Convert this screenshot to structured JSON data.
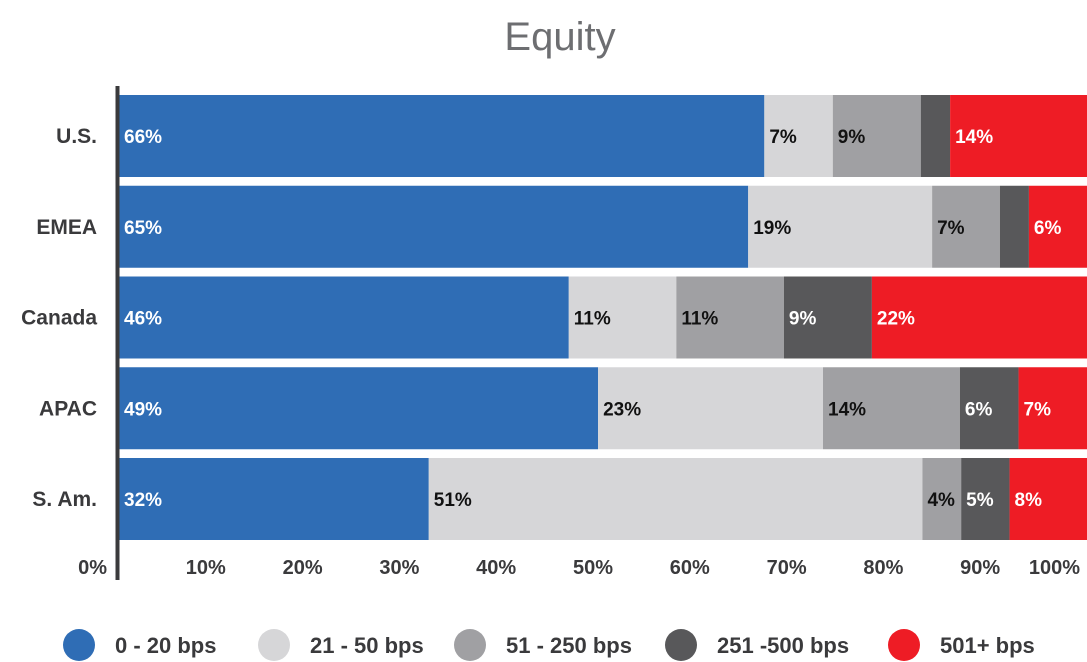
{
  "chart_data": {
    "type": "bar",
    "orientation": "horizontal",
    "stacked": true,
    "title": "Equity",
    "categories": [
      "U.S.",
      "EMEA",
      "Canada",
      "APAC",
      "S. Am."
    ],
    "series": [
      {
        "name": "0 - 20 bps",
        "color": "#2f6db5",
        "values": [
          66,
          65,
          46,
          49,
          32
        ],
        "labels": [
          "66%",
          "65%",
          "46%",
          "49%",
          "32%"
        ]
      },
      {
        "name": "21 - 50 bps",
        "color": "#d6d6d8",
        "values": [
          7,
          19,
          11,
          23,
          51
        ],
        "labels": [
          "7%",
          "19%",
          "11%",
          "23%",
          "51%"
        ]
      },
      {
        "name": "51 - 250 bps",
        "color": "#a0a0a3",
        "values": [
          9,
          7,
          11,
          14,
          4
        ],
        "labels": [
          "9%",
          "7%",
          "11%",
          "14%",
          "4%"
        ]
      },
      {
        "name": "251 -500 bps",
        "color": "#58585a",
        "values": [
          3,
          3,
          9,
          6,
          5
        ],
        "labels": [
          "",
          "",
          "9%",
          "6%",
          "5%"
        ]
      },
      {
        "name": "501+ bps",
        "color": "#ee1c25",
        "values": [
          14,
          6,
          22,
          7,
          8
        ],
        "labels": [
          "14%",
          "6%",
          "22%",
          "7%",
          "8%"
        ]
      }
    ],
    "xlim": [
      0,
      100
    ],
    "xticks": [
      "0%",
      "10%",
      "20%",
      "30%",
      "40%",
      "50%",
      "60%",
      "70%",
      "80%",
      "90%",
      "100%"
    ],
    "legend_position": "bottom",
    "grid": false
  }
}
